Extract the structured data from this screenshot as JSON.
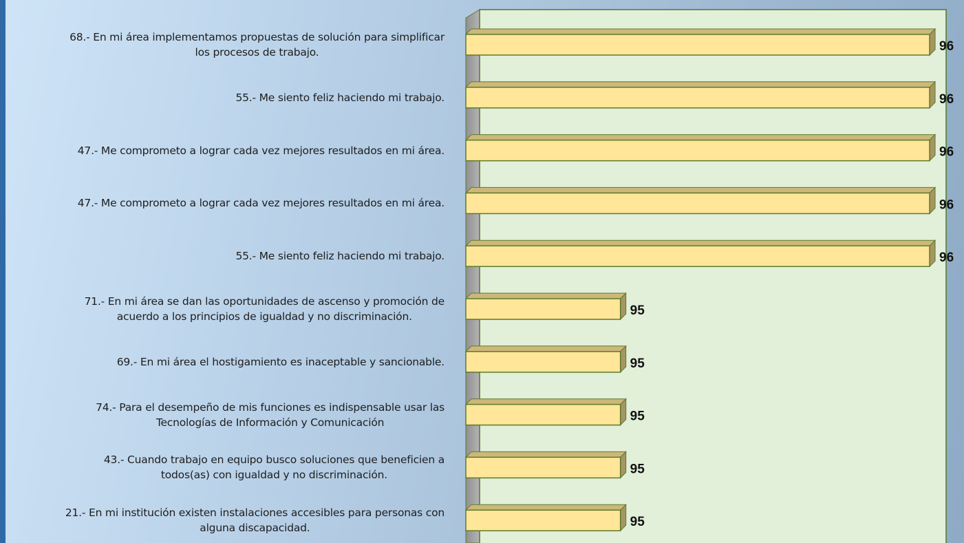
{
  "chart_data": {
    "type": "bar3d_horizontal",
    "categories": [
      "68.- En mi área implementamos propuestas de solución para simplificar\nlos procesos de trabajo.",
      "55.- Me siento feliz haciendo mi trabajo.",
      "47.- Me comprometo a lograr cada vez mejores resultados en mi área.",
      "47.- Me comprometo a lograr cada vez mejores resultados en mi área.",
      "55.- Me siento feliz haciendo mi trabajo.",
      "71.- En mi área se dan las oportunidades de ascenso y promoción de\nacuerdo a los principios de igualdad y no discriminación.",
      "69.- En mi área el hostigamiento es inaceptable y sancionable.",
      "74.- Para el desempeño de mis funciones es indispensable usar las\nTecnologías de Información y Comunicación",
      "43.- Cuando trabajo en equipo busco soluciones que beneficien a\ntodos(as) con igualdad  y no discriminación.",
      "21.- En mi institución existen instalaciones accesibles para personas con\nalguna discapacidad."
    ],
    "values": [
      96,
      96,
      96,
      96,
      96,
      95,
      95,
      95,
      95,
      95
    ],
    "color": "#ffe699",
    "xlim": [
      94.5,
      96.04
    ]
  }
}
